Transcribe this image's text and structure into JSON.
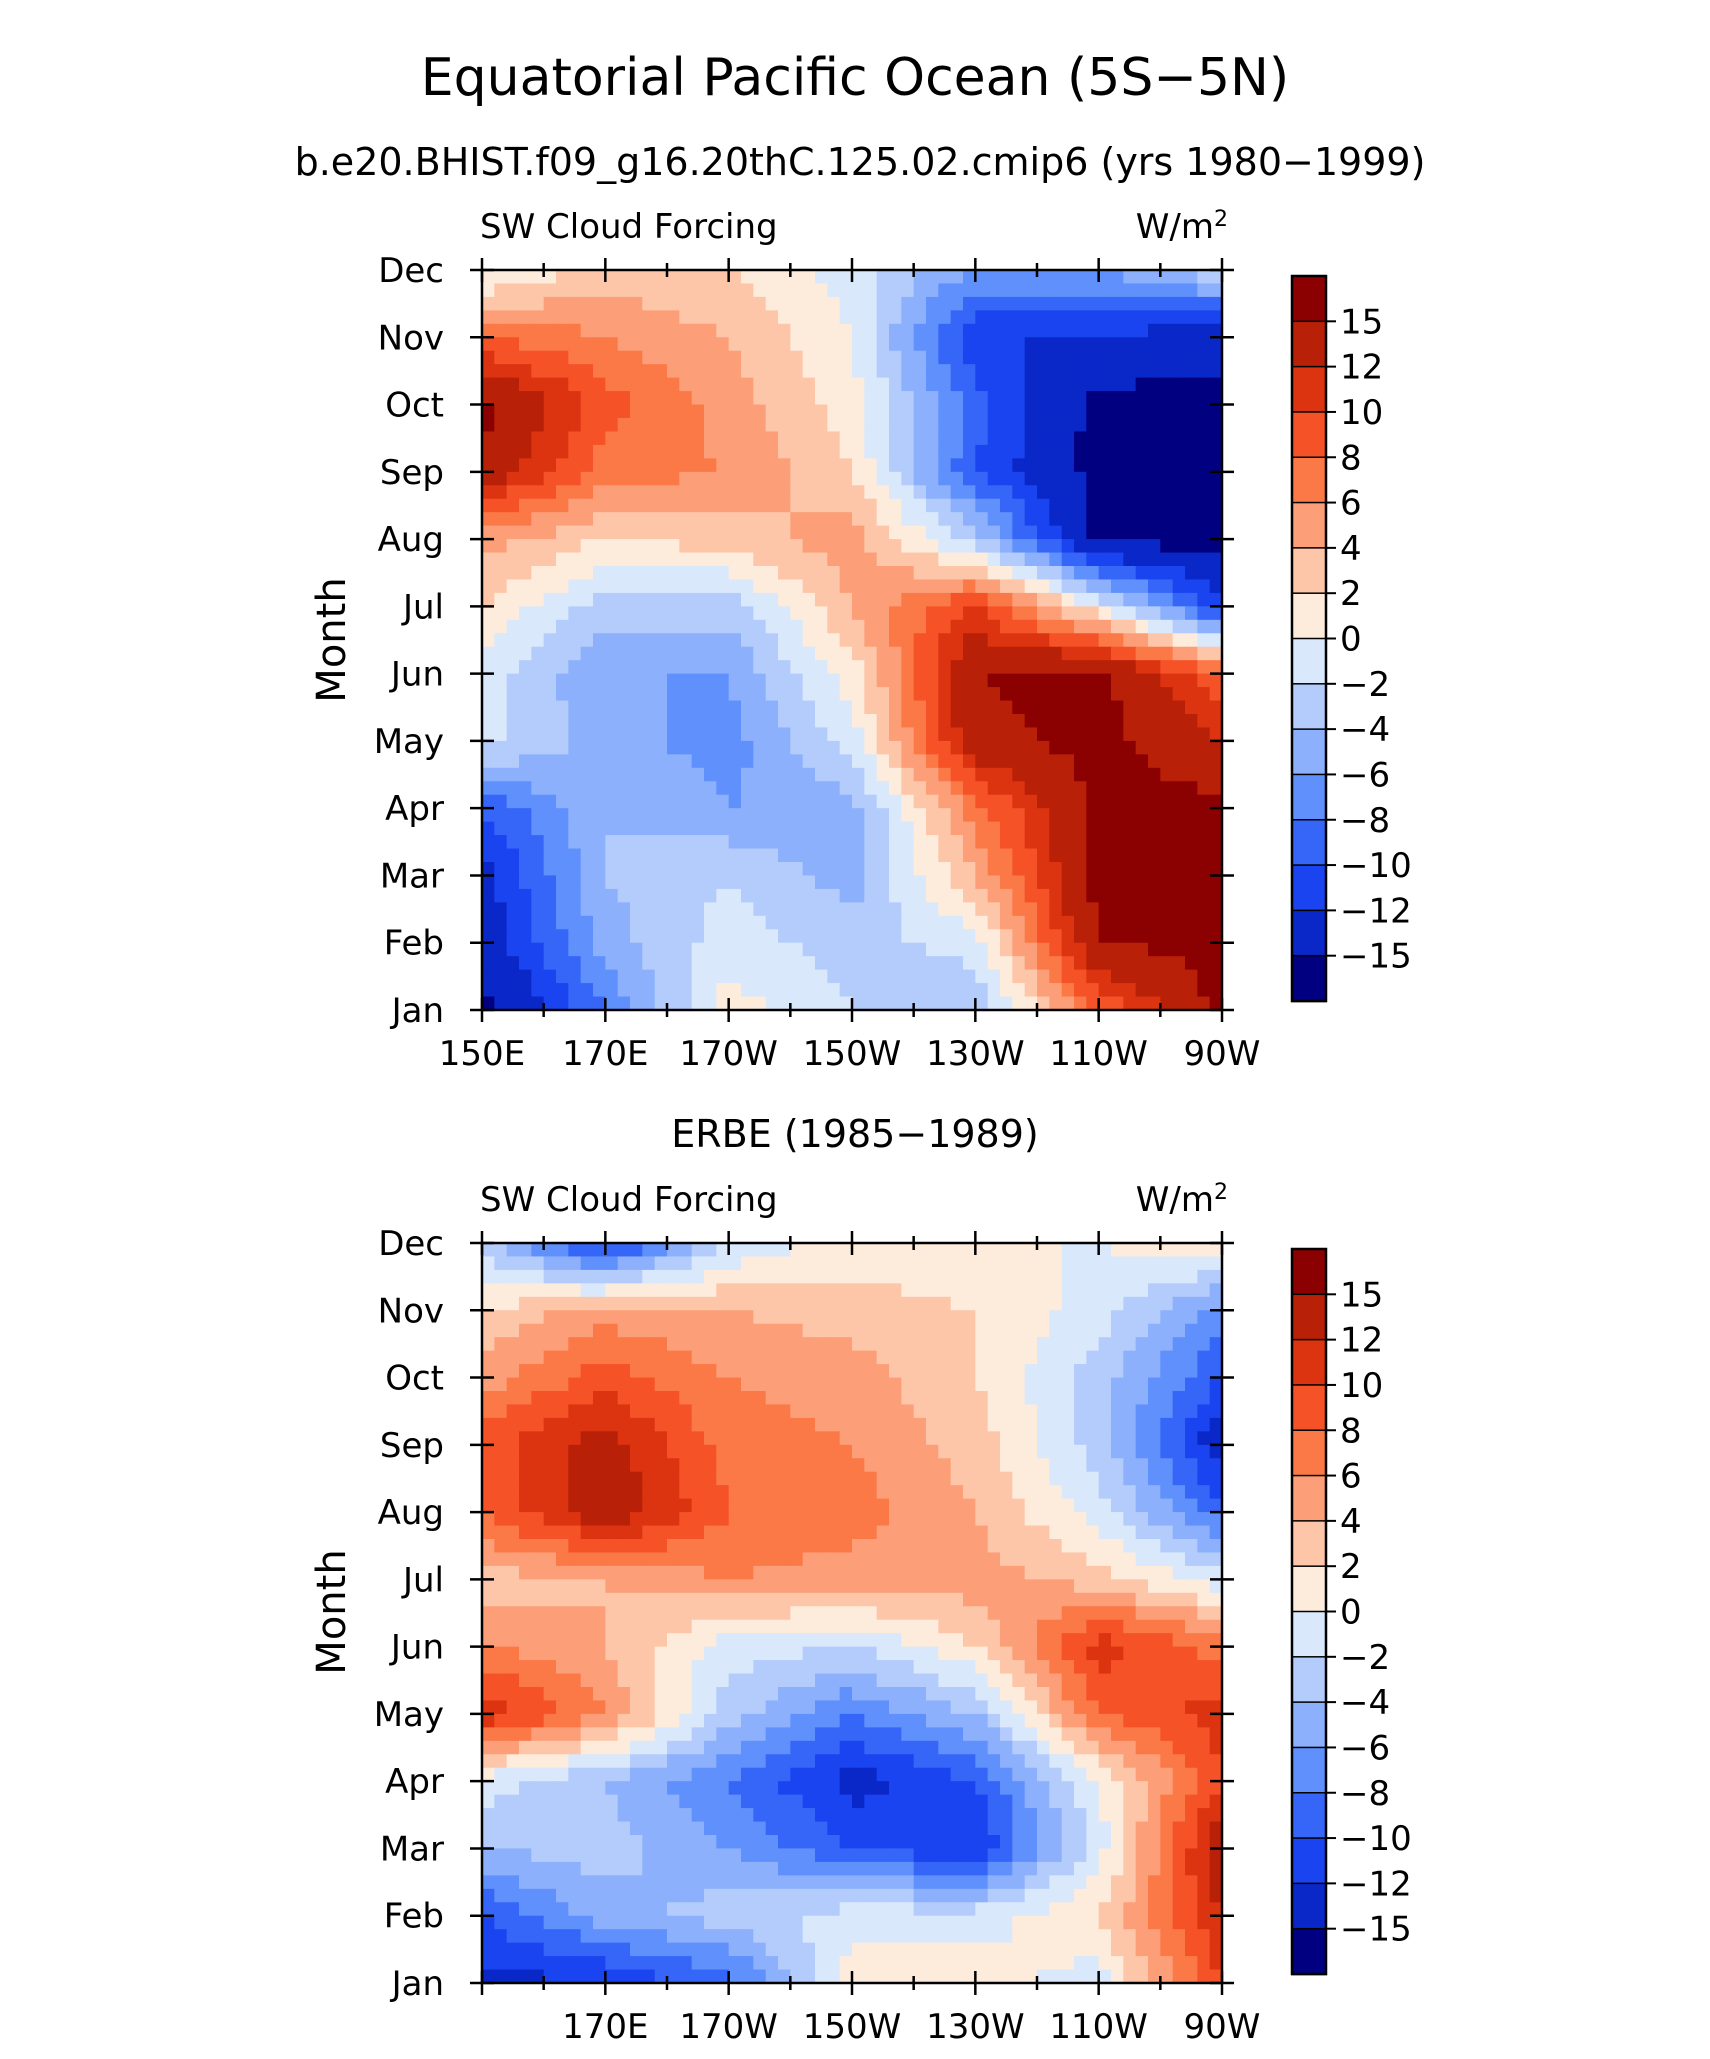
{
  "title": "Equatorial Pacific Ocean (5S−5N)",
  "panels": [
    {
      "subtitle": "b.e20.BHIST.f09_g16.20thC.125.02.cmip6 (yrs 1980−1999)",
      "left_label": "SW Cloud Forcing",
      "right_label": "W/m",
      "right_label_sup": "2"
    },
    {
      "subtitle": "ERBE (1985−1989)",
      "left_label": "SW Cloud Forcing",
      "right_label": "W/m",
      "right_label_sup": "2"
    }
  ],
  "chart_data": [
    {
      "type": "heatmap",
      "title": "Equatorial Pacific Ocean (5S−5N)",
      "subtitle": "b.e20.BHIST.f09_g16.20thC.125.02.cmip6 (yrs 1980−1999)",
      "xlabel": "",
      "ylabel": "Month",
      "units": "W/m2",
      "x_ticks": [
        "150E",
        "170E",
        "170W",
        "150W",
        "130W",
        "110W",
        "90W"
      ],
      "x_tick_lons": [
        150,
        170,
        190,
        210,
        230,
        250,
        270
      ],
      "xlim": [
        150,
        270
      ],
      "y_ticks": [
        "Jan",
        "Feb",
        "Mar",
        "Apr",
        "May",
        "Jun",
        "Jul",
        "Aug",
        "Sep",
        "Oct",
        "Nov",
        "Dec"
      ],
      "levels": [
        "15",
        "12",
        "10",
        "8",
        "6",
        "4",
        "2",
        "0",
        "−2",
        "−4",
        "−6",
        "−8",
        "−10",
        "−12",
        "−15"
      ],
      "colors": [
        "#8b0000",
        "#b82008",
        "#dc3310",
        "#f55228",
        "#fb7847",
        "#fc9f78",
        "#fdc6a8",
        "#fdebdc",
        "#d9e8fb",
        "#b3ccfb",
        "#8cb0fb",
        "#6090fb",
        "#3666f8",
        "#1a44f0",
        "#0a27c8",
        "#000080"
      ],
      "x_lon": [
        150,
        170,
        190,
        210,
        230,
        250,
        270
      ],
      "z": [
        [
          -16,
          -8,
          1,
          -2,
          -4,
          8,
          16
        ],
        [
          -14,
          -5,
          -1,
          -3,
          -1,
          15,
          16
        ],
        [
          -13,
          -4,
          -2,
          -5,
          4,
          16,
          16
        ],
        [
          -10,
          -4,
          -6,
          -5,
          7,
          16,
          16
        ],
        [
          -1,
          -5,
          -7,
          -1,
          14,
          16,
          12
        ],
        [
          -1,
          -6,
          -6,
          1,
          15,
          16,
          8
        ],
        [
          2,
          -3,
          -3,
          4,
          10,
          0,
          -12
        ],
        [
          5,
          2,
          3,
          5,
          -3,
          -16,
          -16
        ],
        [
          14,
          7,
          6,
          2,
          -10,
          -16,
          -16
        ],
        [
          16,
          9,
          5,
          1,
          -9,
          -16,
          -16
        ],
        [
          8,
          6,
          4,
          0,
          -12,
          -12,
          -14
        ],
        [
          -1,
          3,
          2,
          -1,
          -6,
          -6,
          -2
        ]
      ]
    },
    {
      "type": "heatmap",
      "title": "ERBE (1985−1989)",
      "xlabel": "",
      "ylabel": "Month",
      "units": "W/m2",
      "x_ticks": [
        "170E",
        "170W",
        "150W",
        "130W",
        "110W",
        "90W"
      ],
      "x_tick_lons": [
        170,
        190,
        210,
        230,
        250,
        270
      ],
      "xlim": [
        150,
        270
      ],
      "y_ticks": [
        "Jan",
        "Feb",
        "Mar",
        "Apr",
        "May",
        "Jun",
        "Jul",
        "Aug",
        "Sep",
        "Oct",
        "Nov",
        "Dec"
      ],
      "levels": [
        "15",
        "12",
        "10",
        "8",
        "6",
        "4",
        "2",
        "0",
        "−2",
        "−4",
        "−6",
        "−8",
        "−10",
        "−12",
        "−15"
      ],
      "colors": [
        "#8b0000",
        "#b82008",
        "#dc3310",
        "#f55228",
        "#fb7847",
        "#fc9f78",
        "#fdc6a8",
        "#fdebdc",
        "#d9e8fb",
        "#b3ccfb",
        "#8cb0fb",
        "#6090fb",
        "#3666f8",
        "#1a44f0",
        "#0a27c8",
        "#000080"
      ],
      "x_lon": [
        150,
        170,
        190,
        210,
        230,
        250,
        270
      ],
      "z": [
        [
          -13,
          -12,
          -9,
          1,
          1,
          -1,
          10
        ],
        [
          -10,
          -5,
          -3,
          -1,
          -1,
          2,
          12
        ],
        [
          -4,
          -3,
          -6,
          -10,
          -12,
          -1,
          14
        ],
        [
          -1,
          -4,
          -8,
          -13,
          -10,
          0,
          10
        ],
        [
          12,
          6,
          -3,
          -8,
          -4,
          8,
          11
        ],
        [
          6,
          4,
          -1,
          -2,
          2,
          11,
          7
        ],
        [
          3,
          4,
          6,
          5,
          5,
          3,
          -1
        ],
        [
          8,
          14,
          8,
          7,
          4,
          -1,
          -9
        ],
        [
          9,
          13,
          7,
          6,
          3,
          -3,
          -14
        ],
        [
          5,
          9,
          6,
          5,
          2,
          -3,
          -10
        ],
        [
          2,
          5,
          4,
          3,
          2,
          -1,
          -7
        ],
        [
          -3,
          -12,
          -2,
          1,
          0,
          0,
          2
        ]
      ]
    }
  ]
}
